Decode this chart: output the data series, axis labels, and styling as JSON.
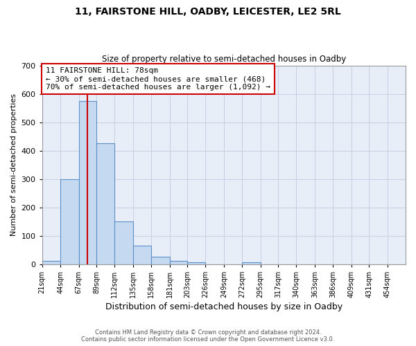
{
  "title": "11, FAIRSTONE HILL, OADBY, LEICESTER, LE2 5RL",
  "subtitle": "Size of property relative to semi-detached houses in Oadby",
  "xlabel": "Distribution of semi-detached houses by size in Oadby",
  "ylabel": "Number of semi-detached properties",
  "annotation_title": "11 FAIRSTONE HILL: 78sqm",
  "annotation_line1": "← 30% of semi-detached houses are smaller (468)",
  "annotation_line2": "70% of semi-detached houses are larger (1,092) →",
  "footer1": "Contains HM Land Registry data © Crown copyright and database right 2024.",
  "footer2": "Contains public sector information licensed under the Open Government Licence v3.0.",
  "property_size": 78,
  "bin_edges": [
    21,
    44,
    67,
    89,
    112,
    135,
    158,
    181,
    203,
    226,
    249,
    272,
    295,
    317,
    340,
    363,
    386,
    409,
    431,
    454,
    477
  ],
  "bar_heights": [
    10,
    300,
    575,
    425,
    150,
    65,
    25,
    10,
    5,
    0,
    0,
    5,
    0,
    0,
    0,
    0,
    0,
    0,
    0,
    0
  ],
  "bar_color": "#c5d9f0",
  "bar_edgecolor": "#5b8fc9",
  "vline_color": "#cc0000",
  "annotation_box_edgecolor": "#cc0000",
  "plot_bg_color": "#e8eef8",
  "background_color": "#ffffff",
  "grid_color": "#c8cfe0",
  "ylim": [
    0,
    700
  ],
  "yticks": [
    0,
    100,
    200,
    300,
    400,
    500,
    600,
    700
  ]
}
